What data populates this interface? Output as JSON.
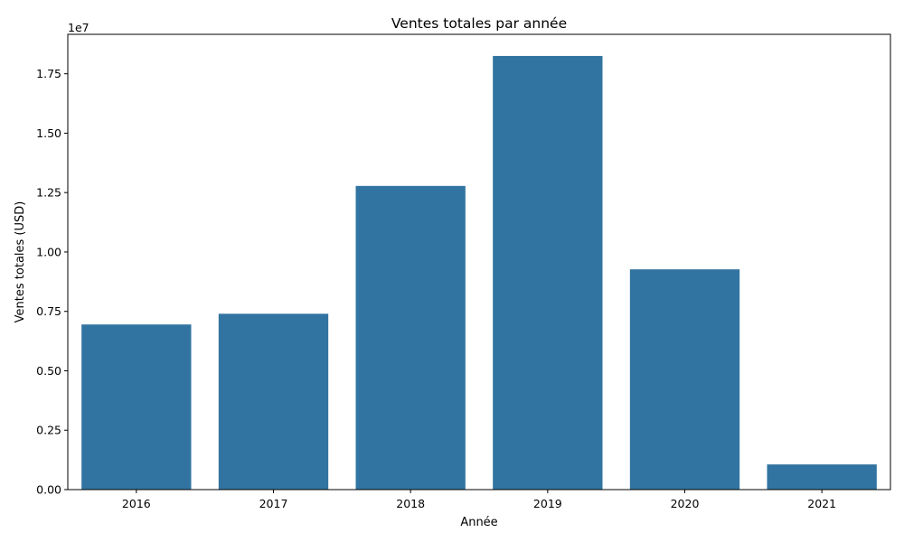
{
  "chart_data": {
    "type": "bar",
    "title": "Ventes totales par année",
    "xlabel": "Année",
    "ylabel": "Ventes totales (USD)",
    "offset_label": "1e7",
    "categories": [
      "2016",
      "2017",
      "2018",
      "2019",
      "2020",
      "2021"
    ],
    "values": [
      6950000,
      7400000,
      12780000,
      18250000,
      9270000,
      1060000
    ],
    "ylim": [
      0,
      19160000
    ],
    "yticks": [
      0,
      2500000,
      5000000,
      7500000,
      10000000,
      12500000,
      15000000,
      17500000
    ],
    "ytick_labels": [
      "0.00",
      "0.25",
      "0.50",
      "0.75",
      "1.00",
      "1.25",
      "1.50",
      "1.75"
    ],
    "bar_color": "#3274a1",
    "grid": false,
    "legend": "none"
  }
}
